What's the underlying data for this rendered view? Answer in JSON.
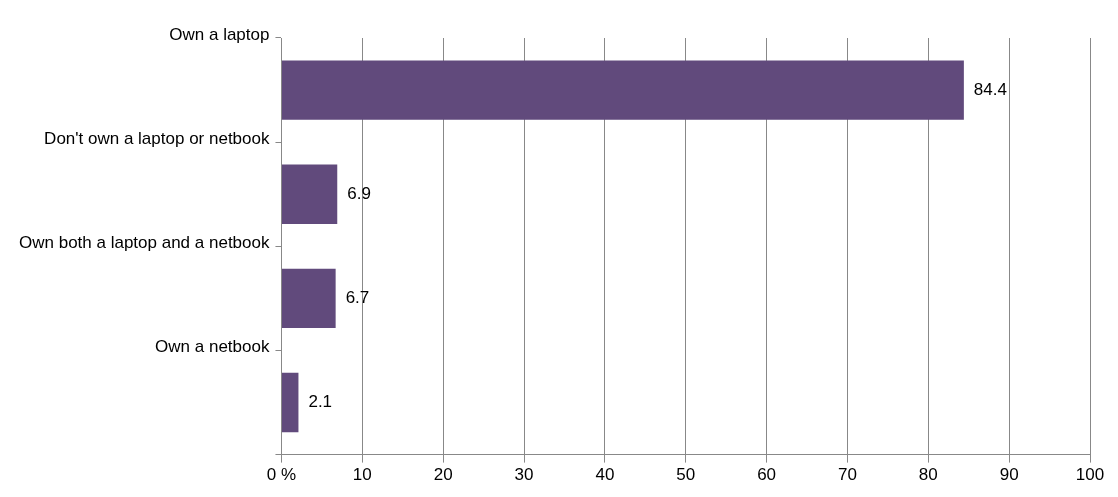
{
  "chart_data": {
    "type": "bar",
    "orientation": "horizontal",
    "categories": [
      "Own a laptop",
      "Don't own a laptop or netbook",
      "Own both a laptop and a netbook",
      "Own a netbook"
    ],
    "values": [
      84.4,
      6.9,
      6.7,
      2.1
    ],
    "color": "#614a7c",
    "data_labels": true,
    "grid": "x",
    "legend": false,
    "xlim": [
      0,
      100
    ],
    "xticks": [
      {
        "value": 0,
        "label": "0 %"
      },
      10,
      20,
      30,
      40,
      50,
      60,
      70,
      80,
      90,
      100
    ]
  }
}
